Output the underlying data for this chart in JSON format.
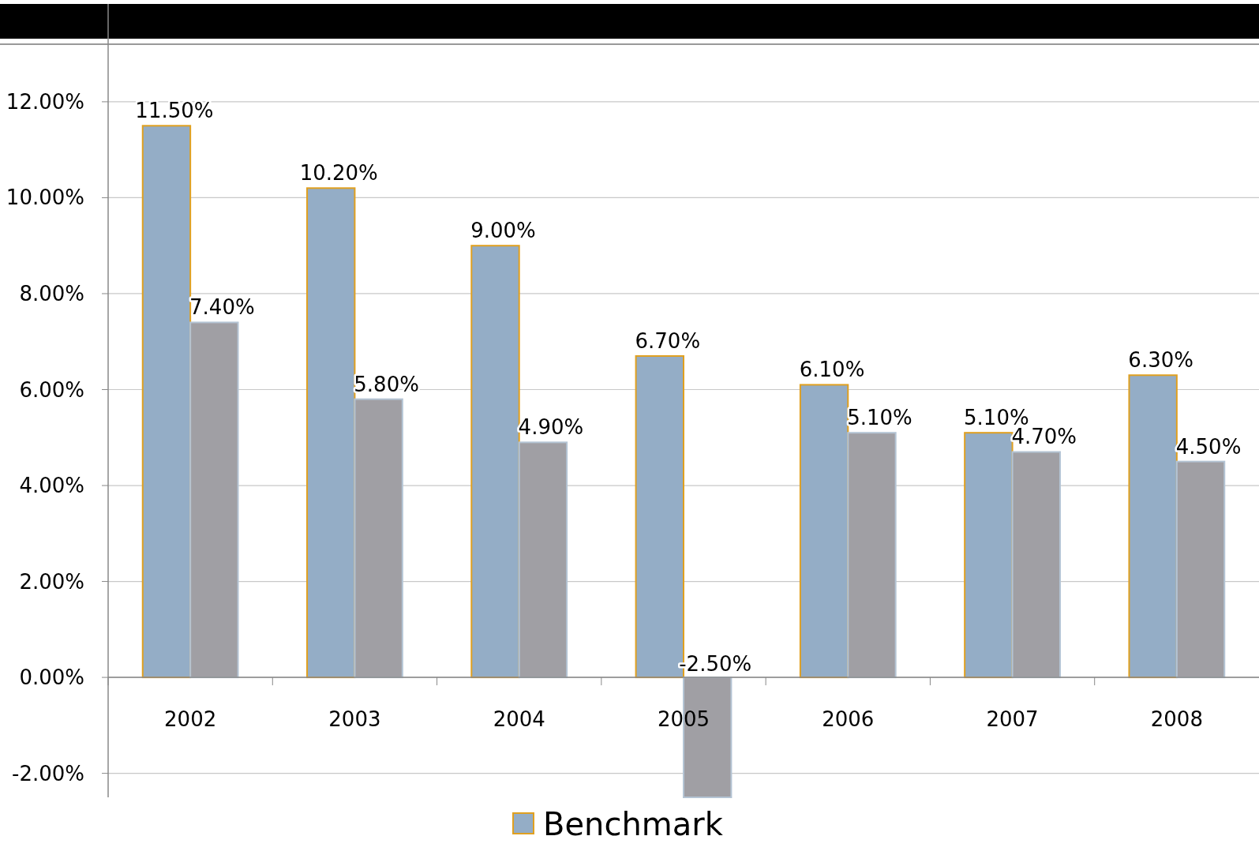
{
  "chart_data": {
    "type": "bar",
    "categories": [
      "2002",
      "2003",
      "2004",
      "2005",
      "2006",
      "2007",
      "2008"
    ],
    "series": [
      {
        "name": "Benchmark",
        "color": "#94adc6",
        "values": [
          11.5,
          10.2,
          9.0,
          6.7,
          6.1,
          5.1,
          6.3
        ],
        "value_labels": [
          "11.50%",
          "10.20%",
          "9.00%",
          "6.70%",
          "6.10%",
          "5.10%",
          "6.30%"
        ]
      },
      {
        "color": "#a09fa4",
        "values": [
          7.4,
          5.8,
          4.9,
          -2.5,
          5.1,
          4.7,
          4.5
        ],
        "value_labels": [
          "7.40%",
          "5.80%",
          "4.90%",
          "-2.50%",
          "5.10%",
          "4.70%",
          "4.50%"
        ]
      }
    ],
    "ylim": [
      -2.5,
      13.2
    ],
    "yticks": [
      {
        "value": -2,
        "label": "-2.00%"
      },
      {
        "value": 0,
        "label": "0.00%"
      },
      {
        "value": 2,
        "label": "2.00%"
      },
      {
        "value": 4,
        "label": "4.00%"
      },
      {
        "value": 6,
        "label": "6.00%"
      },
      {
        "value": 8,
        "label": "8.00%"
      },
      {
        "value": 10,
        "label": "10.00%"
      },
      {
        "value": 12,
        "label": "12.00%"
      }
    ],
    "grid": "y",
    "legend": "bottom"
  }
}
